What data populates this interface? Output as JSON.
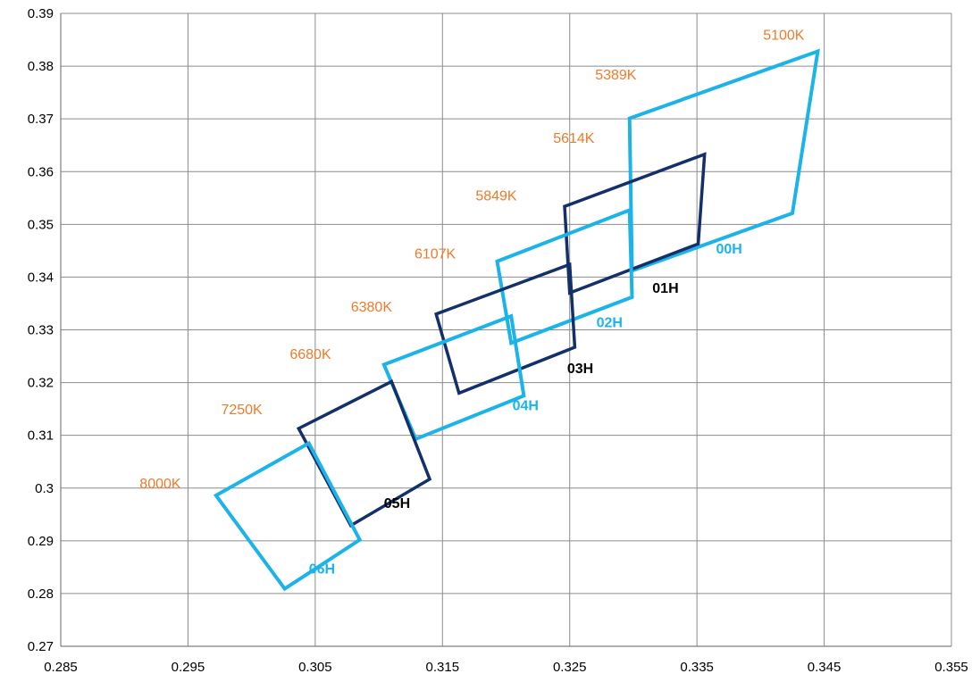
{
  "chart_data": {
    "type": "line",
    "title": "",
    "xlabel": "",
    "ylabel": "",
    "xlim": [
      0.285,
      0.355
    ],
    "ylim": [
      0.27,
      0.39
    ],
    "grid": true,
    "x_ticks": [
      "0.285",
      "0.295",
      "0.305",
      "0.315",
      "0.325",
      "0.335",
      "0.345",
      "0.355"
    ],
    "y_ticks": [
      "0.27",
      "0.28",
      "0.29",
      "0.3",
      "0.31",
      "0.32",
      "0.33",
      "0.34",
      "0.35",
      "0.36",
      "0.37",
      "0.38",
      "0.39"
    ],
    "colors": {
      "light": "#1cb4e8",
      "dark": "#13306a",
      "cct_text": "#ee7b2a"
    },
    "series": [
      {
        "name": "00H",
        "label_x": 0.3365,
        "label_y": 0.3445,
        "points": [
          [
            0.3297,
            0.3701
          ],
          [
            0.3445,
            0.3828
          ],
          [
            0.3425,
            0.3521
          ],
          [
            0.3299,
            0.3412
          ]
        ]
      },
      {
        "name": "01H",
        "label_x": 0.3315,
        "label_y": 0.337,
        "points": [
          [
            0.3246,
            0.3534
          ],
          [
            0.3356,
            0.3633
          ],
          [
            0.3351,
            0.3463
          ],
          [
            0.325,
            0.337
          ]
        ]
      },
      {
        "name": "02H",
        "label_x": 0.3271,
        "label_y": 0.3305,
        "points": [
          [
            0.3193,
            0.343
          ],
          [
            0.3297,
            0.3527
          ],
          [
            0.3299,
            0.3362
          ],
          [
            0.3204,
            0.3275
          ]
        ]
      },
      {
        "name": "03H",
        "label_x": 0.3248,
        "label_y": 0.3218,
        "points": [
          [
            0.3145,
            0.333
          ],
          [
            0.325,
            0.3424
          ],
          [
            0.3254,
            0.3267
          ],
          [
            0.3163,
            0.318
          ]
        ]
      },
      {
        "name": "04H",
        "label_x": 0.3205,
        "label_y": 0.3148,
        "points": [
          [
            0.3104,
            0.3234
          ],
          [
            0.3204,
            0.3326
          ],
          [
            0.3214,
            0.3175
          ],
          [
            0.3129,
            0.3093
          ]
        ]
      },
      {
        "name": "05H",
        "label_x": 0.3104,
        "label_y": 0.2962,
        "points": [
          [
            0.3037,
            0.3113
          ],
          [
            0.311,
            0.3202
          ],
          [
            0.314,
            0.3017
          ],
          [
            0.3078,
            0.2929
          ]
        ]
      },
      {
        "name": "06H",
        "label_x": 0.3045,
        "label_y": 0.2838,
        "points": [
          [
            0.2972,
            0.2986
          ],
          [
            0.3045,
            0.3085
          ],
          [
            0.3085,
            0.2902
          ],
          [
            0.3026,
            0.2809
          ]
        ]
      }
    ],
    "annotations": [
      {
        "text": "5100K",
        "x": 0.3402,
        "y": 0.385
      },
      {
        "text": "5389K",
        "x": 0.327,
        "y": 0.3775
      },
      {
        "text": "5614K",
        "x": 0.3237,
        "y": 0.3655
      },
      {
        "text": "5849K",
        "x": 0.3176,
        "y": 0.3545
      },
      {
        "text": "6107K",
        "x": 0.3128,
        "y": 0.3435
      },
      {
        "text": "6380K",
        "x": 0.3078,
        "y": 0.3335
      },
      {
        "text": "6680K",
        "x": 0.303,
        "y": 0.3245
      },
      {
        "text": "7250K",
        "x": 0.2976,
        "y": 0.314
      },
      {
        "text": "8000K",
        "x": 0.2912,
        "y": 0.3
      }
    ]
  }
}
